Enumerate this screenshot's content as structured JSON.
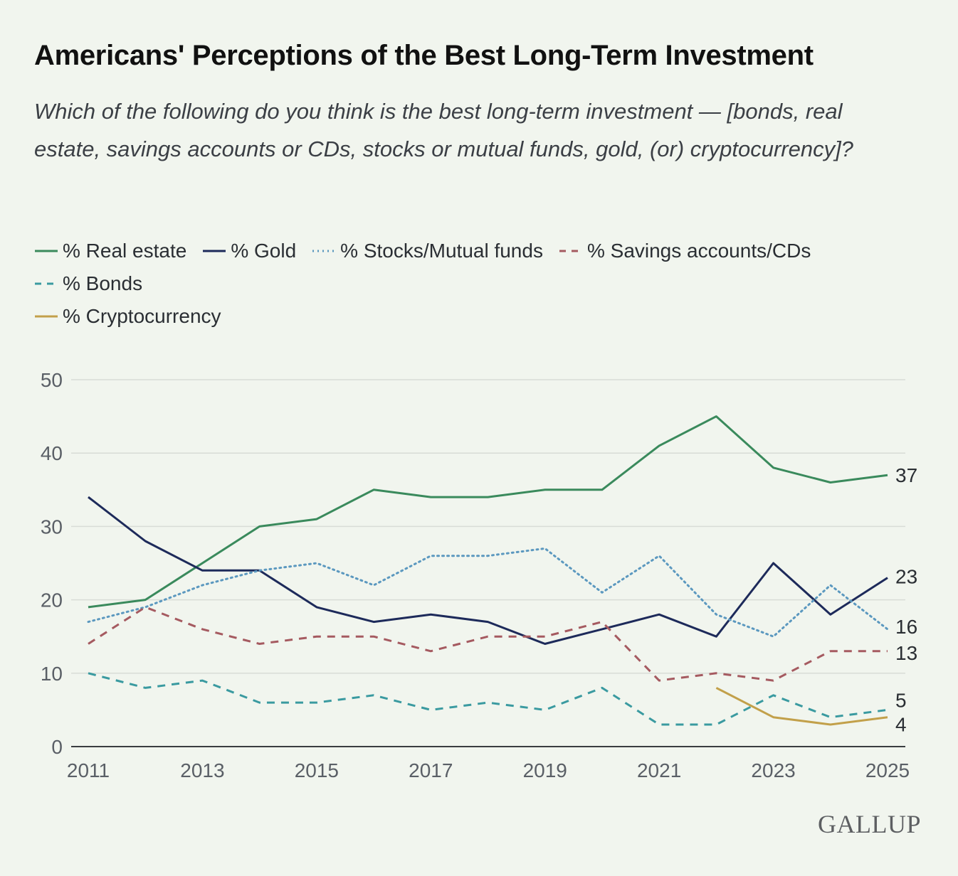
{
  "title": "Americans' Perceptions of the Best Long-Term Investment",
  "subtitle": "Which of the following do you think is the best long-term investment — [bonds, real estate, savings accounts or CDs, stocks or mutual funds, gold, (or) cryptocurrency]?",
  "legend": [
    {
      "label": "% Real estate",
      "color": "#3a8a5c",
      "dash": "solid"
    },
    {
      "label": "% Gold",
      "color": "#1d2a5a",
      "dash": "solid"
    },
    {
      "label": "% Stocks/Mutual funds",
      "color": "#5b98bf",
      "dash": "dotted"
    },
    {
      "label": "% Savings accounts/CDs",
      "color": "#a55a60",
      "dash": "dashed"
    },
    {
      "label": "% Bonds",
      "color": "#3a9aa0",
      "dash": "dashed"
    },
    {
      "label": "% Cryptocurrency",
      "color": "#c2a04a",
      "dash": "solid"
    }
  ],
  "logo": "GALLUP",
  "chart_data": {
    "type": "line",
    "x": [
      2011,
      2012,
      2013,
      2014,
      2015,
      2016,
      2017,
      2018,
      2019,
      2020,
      2021,
      2022,
      2023,
      2024,
      2025
    ],
    "x_ticks": [
      "2011",
      "2013",
      "2015",
      "2017",
      "2019",
      "2021",
      "2023",
      "2025"
    ],
    "y_ticks": [
      "0",
      "10",
      "20",
      "30",
      "40",
      "50"
    ],
    "ylim": [
      0,
      50
    ],
    "xlim": [
      2011,
      2025
    ],
    "grid": true,
    "legend_position": "top",
    "series": [
      {
        "name": "% Real estate",
        "color": "#3a8a5c",
        "dash": "solid",
        "values": [
          19,
          20,
          25,
          30,
          31,
          35,
          34,
          34,
          35,
          35,
          41,
          45,
          38,
          36,
          37
        ],
        "end_label": "37"
      },
      {
        "name": "% Gold",
        "color": "#1d2a5a",
        "dash": "solid",
        "values": [
          34,
          28,
          24,
          24,
          19,
          17,
          18,
          17,
          14,
          16,
          18,
          15,
          25,
          18,
          23
        ],
        "end_label": "23"
      },
      {
        "name": "% Stocks/Mutual funds",
        "color": "#5b98bf",
        "dash": "dotted",
        "values": [
          17,
          19,
          22,
          24,
          25,
          22,
          26,
          26,
          27,
          21,
          26,
          18,
          15,
          22,
          16
        ],
        "end_label": "16"
      },
      {
        "name": "% Savings accounts/CDs",
        "color": "#a55a60",
        "dash": "dashed",
        "values": [
          14,
          19,
          16,
          14,
          15,
          15,
          13,
          15,
          15,
          17,
          9,
          10,
          9,
          13,
          13
        ],
        "end_label": "13"
      },
      {
        "name": "% Bonds",
        "color": "#3a9aa0",
        "dash": "dashed",
        "values": [
          10,
          8,
          9,
          6,
          6,
          7,
          5,
          6,
          5,
          8,
          3,
          3,
          7,
          4,
          5
        ],
        "end_label": "5"
      },
      {
        "name": "% Cryptocurrency",
        "color": "#c2a04a",
        "dash": "solid",
        "values": [
          null,
          null,
          null,
          null,
          null,
          null,
          null,
          null,
          null,
          null,
          null,
          8,
          4,
          3,
          4
        ],
        "end_label": "4"
      }
    ]
  }
}
